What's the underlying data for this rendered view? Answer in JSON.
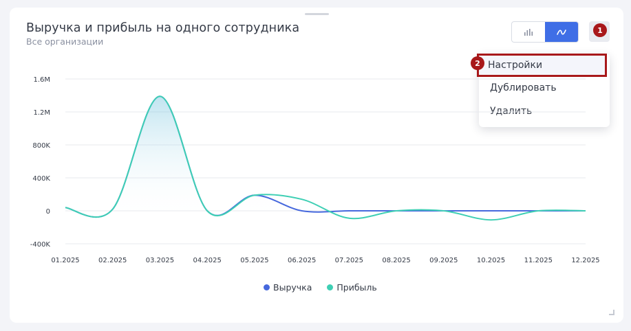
{
  "widget": {
    "title": "Выручка и прибыль на одного сотрудника",
    "subtitle": "Все организации"
  },
  "toolbar": {
    "bar_chart_icon": "bar-chart-icon",
    "line_chart_icon": "line-chart-icon",
    "active_view": "line",
    "menu_marker": "1"
  },
  "dropdown": {
    "marker": "2",
    "items": [
      {
        "label": "Настройки"
      },
      {
        "label": "Дублировать"
      },
      {
        "label": "Удалить"
      }
    ]
  },
  "colors": {
    "revenue": "#4668dd",
    "profit": "#3ecfb4",
    "accent": "#3f6ee6",
    "marker": "#a8181a"
  },
  "chart_data": {
    "type": "line",
    "title": "",
    "xlabel": "",
    "ylabel": "",
    "categories": [
      "01.2025",
      "02.2025",
      "03.2025",
      "04.2025",
      "05.2025",
      "06.2025",
      "07.2025",
      "08.2025",
      "09.2025",
      "10.2025",
      "11.2025",
      "12.2025"
    ],
    "yticks": [
      -400000,
      0,
      400000,
      800000,
      1200000,
      1600000
    ],
    "ytick_labels": [
      "-400K",
      "0",
      "400K",
      "800K",
      "1.2M",
      "1.6M"
    ],
    "ylim": [
      -400000,
      1600000
    ],
    "grid": true,
    "legend_position": "bottom",
    "series": [
      {
        "name": "Выручка",
        "color": "#4668dd",
        "values": [
          40000,
          20000,
          1390000,
          0,
          190000,
          0,
          0,
          0,
          0,
          0,
          0,
          0
        ]
      },
      {
        "name": "Прибыль",
        "color": "#3ecfb4",
        "values": [
          40000,
          20000,
          1390000,
          0,
          190000,
          140000,
          -90000,
          0,
          0,
          -110000,
          0,
          0
        ],
        "area": true
      }
    ]
  }
}
